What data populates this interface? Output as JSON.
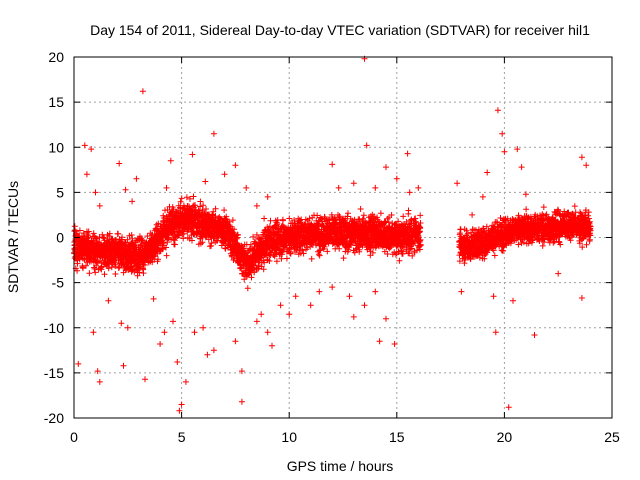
{
  "chart_data": {
    "type": "scatter",
    "title": "Day 154 of 2011, Sidereal Day-to-day VTEC variation (SDTVAR) for receiver hil1",
    "xlabel": "GPS time / hours",
    "ylabel": "SDTVAR / TECUs",
    "xlim": [
      0,
      25
    ],
    "ylim": [
      -20,
      20
    ],
    "xticks": [
      0,
      5,
      10,
      15,
      20,
      25
    ],
    "yticks": [
      -20,
      -15,
      -10,
      -5,
      0,
      5,
      10,
      15,
      20
    ],
    "grid": true,
    "marker": "+",
    "color": "#ff0000",
    "series": [
      {
        "name": "SDTVAR",
        "description_of_trend": [
          [
            0,
            -1
          ],
          [
            1,
            -1.5
          ],
          [
            2,
            -1.8
          ],
          [
            3,
            -2
          ],
          [
            3.5,
            -1.5
          ],
          [
            4,
            0
          ],
          [
            4.5,
            1.5
          ],
          [
            5,
            2
          ],
          [
            5.5,
            1.8
          ],
          [
            6,
            1.5
          ],
          [
            6.5,
            1
          ],
          [
            7,
            1
          ],
          [
            7.5,
            -1
          ],
          [
            8,
            -3
          ],
          [
            8.5,
            -2
          ],
          [
            9,
            -0.5
          ],
          [
            10,
            0
          ],
          [
            11,
            0.5
          ],
          [
            12,
            0.5
          ],
          [
            13,
            0.5
          ],
          [
            14,
            0.5
          ],
          [
            15,
            0
          ],
          [
            15.5,
            0
          ],
          [
            16,
            0.5
          ]
        ],
        "gap_hours": [
          16.1,
          17.8
        ],
        "trend_after_gap": [
          [
            17.9,
            -1
          ],
          [
            18.5,
            -1
          ],
          [
            19,
            -0.5
          ],
          [
            19.5,
            0
          ],
          [
            20,
            0.5
          ],
          [
            21,
            1
          ],
          [
            22,
            1
          ],
          [
            23,
            1.5
          ],
          [
            24,
            1
          ]
        ],
        "outliers": [
          [
            0.5,
            10.2
          ],
          [
            0.8,
            9.8
          ],
          [
            0.6,
            7
          ],
          [
            1.0,
            5
          ],
          [
            1.2,
            3.5
          ],
          [
            2.1,
            8.2
          ],
          [
            2.4,
            5.3
          ],
          [
            2.7,
            4
          ],
          [
            2.9,
            6.5
          ],
          [
            3.2,
            16.2
          ],
          [
            0.2,
            -14
          ],
          [
            0.9,
            -10.5
          ],
          [
            1.1,
            -14.8
          ],
          [
            1.2,
            -16
          ],
          [
            1.6,
            -7
          ],
          [
            2.2,
            -9.5
          ],
          [
            2.3,
            -14.2
          ],
          [
            2.5,
            -10
          ],
          [
            3.3,
            -15.7
          ],
          [
            3.7,
            -6.8
          ],
          [
            4.0,
            -11.8
          ],
          [
            4.2,
            -10.5
          ],
          [
            4.6,
            -9.3
          ],
          [
            4.8,
            -13.8
          ],
          [
            4.9,
            -19.2
          ],
          [
            5.0,
            -18.5
          ],
          [
            5.2,
            -16
          ],
          [
            5.6,
            -10.5
          ],
          [
            4.3,
            5.5
          ],
          [
            4.5,
            8.5
          ],
          [
            5.5,
            9.2
          ],
          [
            6.1,
            6.2
          ],
          [
            6.5,
            11.5
          ],
          [
            7.0,
            7
          ],
          [
            7.5,
            8
          ],
          [
            8.0,
            5.5
          ],
          [
            8.5,
            3.5
          ],
          [
            9.0,
            4.5
          ],
          [
            6.0,
            -10
          ],
          [
            6.2,
            -13
          ],
          [
            6.5,
            -12.5
          ],
          [
            7.5,
            -11.5
          ],
          [
            7.8,
            -14.8
          ],
          [
            7.8,
            -18.2
          ],
          [
            8.5,
            -9.3
          ],
          [
            8.7,
            -8.5
          ],
          [
            9.0,
            -10.5
          ],
          [
            9.2,
            -12
          ],
          [
            9.6,
            -7.5
          ],
          [
            10.0,
            -8.5
          ],
          [
            10.3,
            -6.5
          ],
          [
            11.0,
            -7.5
          ],
          [
            11.4,
            -6
          ],
          [
            12.0,
            -5.5
          ],
          [
            12.8,
            -6.5
          ],
          [
            13.0,
            -8.8
          ],
          [
            13.5,
            -7.5
          ],
          [
            14.0,
            -6
          ],
          [
            14.2,
            -11.5
          ],
          [
            14.5,
            -9
          ],
          [
            14.9,
            -11.8
          ],
          [
            12.0,
            8.1
          ],
          [
            12.3,
            5.5
          ],
          [
            13.0,
            6
          ],
          [
            13.5,
            19.8
          ],
          [
            13.6,
            10.2
          ],
          [
            14.0,
            5.5
          ],
          [
            14.5,
            7.8
          ],
          [
            15.0,
            6.5
          ],
          [
            15.5,
            9.3
          ],
          [
            15.6,
            5
          ],
          [
            16.0,
            5.5
          ],
          [
            17.8,
            6.0
          ],
          [
            18.0,
            -6.0
          ],
          [
            18.5,
            2.5
          ],
          [
            19.0,
            4.5
          ],
          [
            19.2,
            7.2
          ],
          [
            19.5,
            -6.5
          ],
          [
            19.6,
            -10.5
          ],
          [
            19.7,
            14.1
          ],
          [
            19.9,
            11.5
          ],
          [
            20.0,
            9.5
          ],
          [
            20.2,
            -18.8
          ],
          [
            20.4,
            -7
          ],
          [
            20.6,
            9.8
          ],
          [
            20.8,
            7.8
          ],
          [
            21.0,
            4.8
          ],
          [
            21.4,
            -10.8
          ],
          [
            22.5,
            -4
          ],
          [
            23.6,
            -6.7
          ],
          [
            23.6,
            8.9
          ],
          [
            23.8,
            8
          ]
        ]
      }
    ]
  }
}
